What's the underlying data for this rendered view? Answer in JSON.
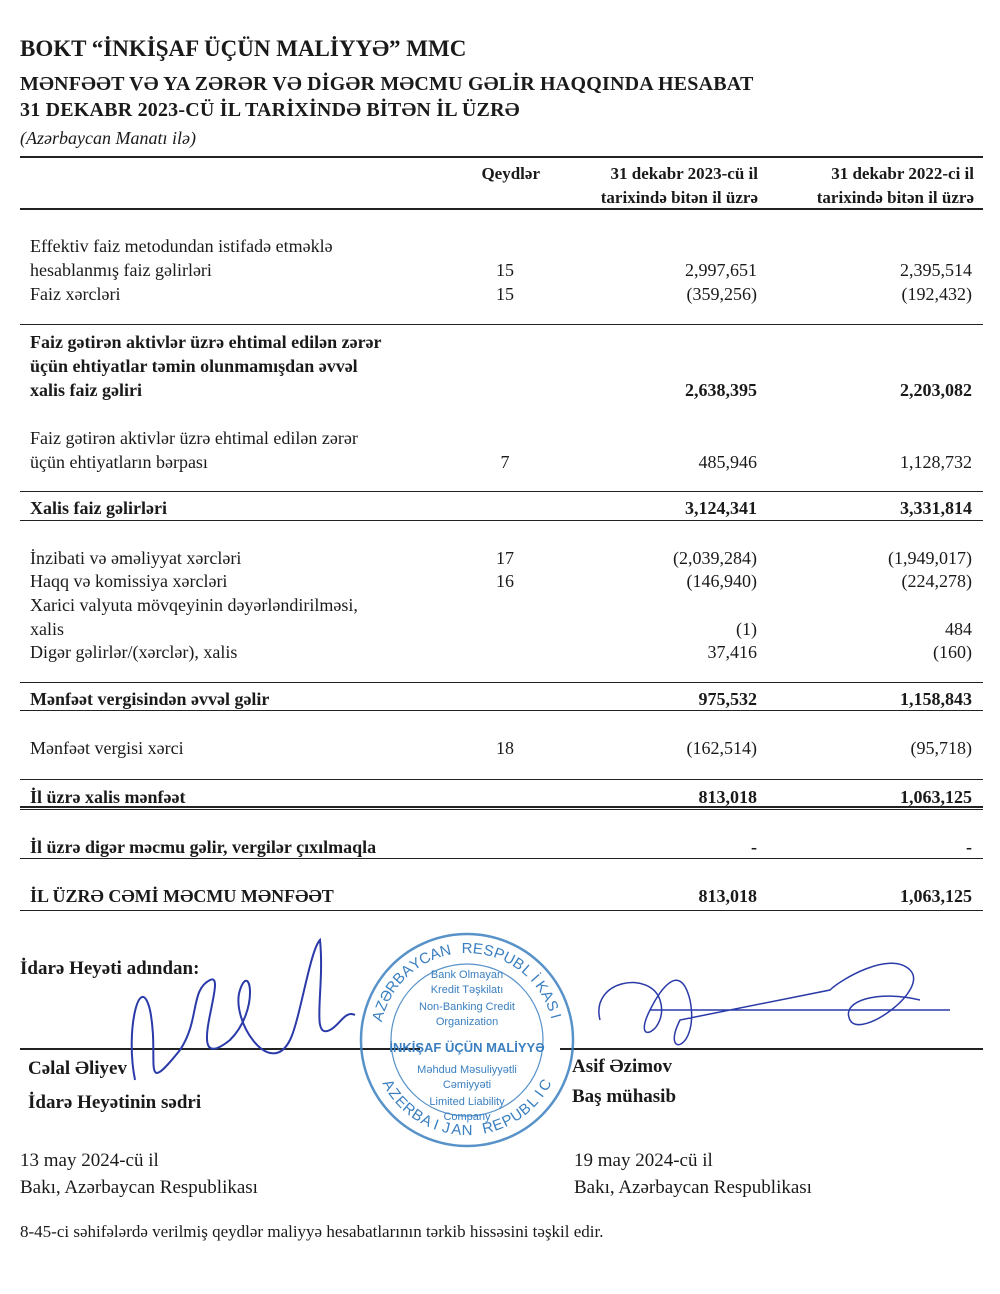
{
  "header": {
    "company": "BOKT “İNKİŞAF ÜÇÜN MALİYYƏ” MMC",
    "title": "MƏNFƏƏT VƏ YA ZƏRƏR VƏ DİGƏR MƏCMU GƏLİR HAQQINDA HESABAT",
    "subtitle": "31 DEKABR 2023-CÜ İL TARİXİNDƏ BİTƏN İL ÜZRƏ",
    "currency": "(Azərbaycan Manatı ilə)"
  },
  "columns": {
    "notes": "Qeydlər",
    "y2023": [
      "31 dekabr 2023-cü il",
      "tarixində bitən il üzrə"
    ],
    "y2022": [
      "31 dekabr 2022-ci il",
      "tarixində bitən il üzrə"
    ]
  },
  "rows": [
    {
      "label": [
        "Effektiv faiz metodundan istifadə etməklə",
        "hesablanmış faiz gəlirləri"
      ],
      "note": "15",
      "v2023": "2,997,651",
      "v2022": "2,395,514",
      "bold": false
    },
    {
      "label": [
        "Faiz xərcləri"
      ],
      "note": "15",
      "v2023": "(359,256)",
      "v2022": "(192,432)",
      "bold": false
    },
    {
      "label": [
        "Faiz gətirən aktivlər üzrə ehtimal edilən zərər",
        "üçün ehtiyatlar təmin olunmamışdan əvvəl",
        "xalis faiz gəliri"
      ],
      "note": "",
      "v2023": "2,638,395",
      "v2022": "2,203,082",
      "bold": true
    },
    {
      "label": [
        "Faiz gətirən aktivlər üzrə ehtimal edilən zərər",
        "üçün ehtiyatların bərpası"
      ],
      "note": "7",
      "v2023": "485,946",
      "v2022": "1,128,732",
      "bold": false
    },
    {
      "label": [
        "Xalis faiz gəlirləri"
      ],
      "note": "",
      "v2023": "3,124,341",
      "v2022": "3,331,814",
      "bold": true
    },
    {
      "label": [
        "İnzibati və əməliyyat xərcləri"
      ],
      "note": "17",
      "v2023": "(2,039,284)",
      "v2022": "(1,949,017)",
      "bold": false
    },
    {
      "label": [
        "Haqq və komissiya xərcləri"
      ],
      "note": "16",
      "v2023": "(146,940)",
      "v2022": "(224,278)",
      "bold": false
    },
    {
      "label": [
        "Xarici valyuta mövqeyinin dəyərləndirilməsi,",
        "xalis"
      ],
      "note": "",
      "v2023": "(1)",
      "v2022": "484",
      "bold": false
    },
    {
      "label": [
        "Digər gəlirlər/(xərclər), xalis"
      ],
      "note": "",
      "v2023": "37,416",
      "v2022": "(160)",
      "bold": false
    },
    {
      "label": [
        "Mənfəət vergisindən əvvəl gəlir"
      ],
      "note": "",
      "v2023": "975,532",
      "v2022": "1,158,843",
      "bold": true
    },
    {
      "label": [
        "Mənfəət vergisi xərci"
      ],
      "note": "18",
      "v2023": "(162,514)",
      "v2022": "(95,718)",
      "bold": false
    },
    {
      "label": [
        "İl üzrə xalis mənfəət"
      ],
      "note": "",
      "v2023": "813,018",
      "v2022": "1,063,125",
      "bold": true
    },
    {
      "label": [
        "İl üzrə digər məcmu gəlir, vergilər çıxılmaqla"
      ],
      "note": "",
      "v2023": "-",
      "v2022": "-",
      "bold": true
    },
    {
      "label": [
        "İL ÜZRƏ CƏMİ MƏCMU MƏNFƏƏT"
      ],
      "note": "",
      "v2023": "813,018",
      "v2022": "1,063,125",
      "bold": true
    }
  ],
  "signatures": {
    "board_label": "İdarə Heyəti adından:",
    "left_name": "Cəlal Əliyev",
    "left_title": "İdarə Heyətinin sədri",
    "right_name": "Asif Əzimov",
    "right_title": "Baş mühasib",
    "left_date": "13 may 2024-cü il",
    "left_place": "Bakı, Azərbaycan Respublikası",
    "right_date": "19 may 2024-cü il",
    "right_place": "Bakı, Azərbaycan Respublikası"
  },
  "stamp": {
    "outer_top": "AZƏRBAYCAN RESPUBLİKASI",
    "outer_bottom": "AZERBAIJAN REPUBLIC",
    "inner": [
      "Bank Olmayan",
      "Kredit Təşkilatı",
      "Non-Banking Credit",
      "Organization",
      "İNKİŞAF ÜÇÜN MALİYYƏ",
      "Məhdud Məsuliyyətli",
      "Cəmiyyəti",
      "Limited Liability",
      "Company"
    ],
    "color": "#3a7fc0"
  },
  "signature_ink_color": "#2a3aa8",
  "footer": "8-45-ci səhifələrdə verilmiş qeydlər maliyyə hesabatlarının tərkib hissəsini təşkil edir."
}
